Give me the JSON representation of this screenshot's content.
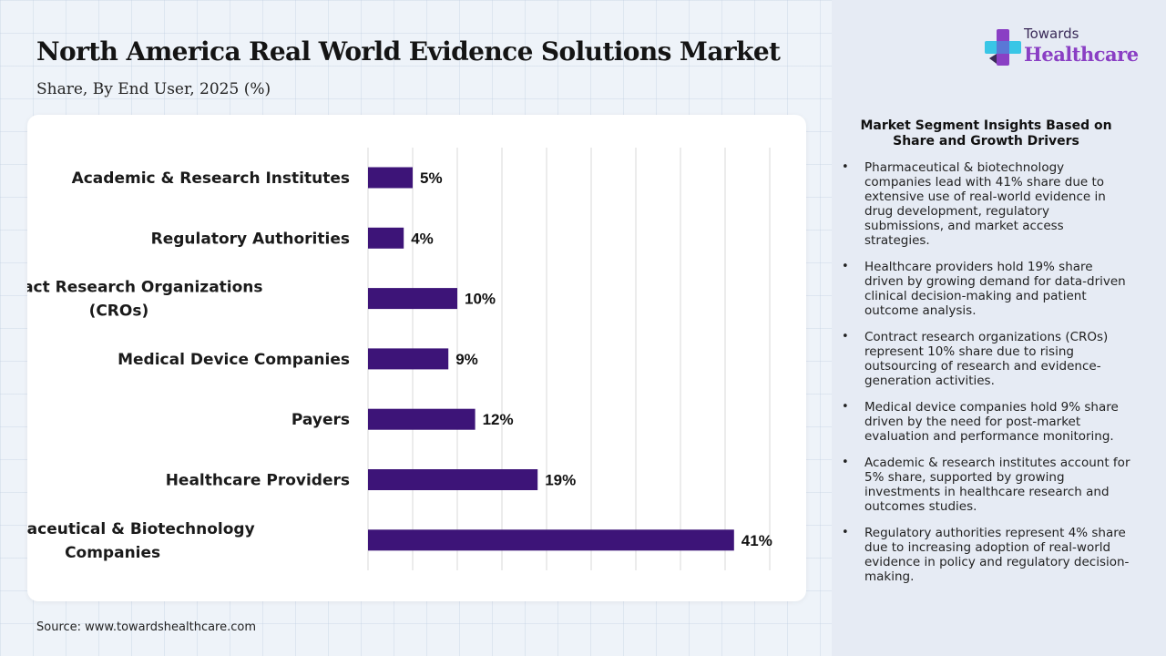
{
  "header": {
    "title": "North America Real World Evidence Solutions Market",
    "subtitle": "Share, By End User, 2025 (%)"
  },
  "brand": {
    "line1": "Towards",
    "line2": "Healthcare",
    "icon": "medical-cross-logo-icon",
    "colors": {
      "purple": "#8a3fc4",
      "cyan": "#39c6e6",
      "dark": "#3a2a58"
    }
  },
  "chart_data": {
    "type": "bar",
    "orientation": "horizontal",
    "title": "North America Real World Evidence Solutions Market",
    "subtitle": "Share, By End User, 2025 (%)",
    "categories": [
      [
        "Academic & Research Institutes"
      ],
      [
        "Regulatory Authorities"
      ],
      [
        "Contract Research Organizations",
        "(CROs)"
      ],
      [
        "Medical Device Companies"
      ],
      [
        "Payers"
      ],
      [
        "Healthcare Providers"
      ],
      [
        "Pharmaceutical & Biotechnology",
        "Companies"
      ]
    ],
    "values": [
      5,
      4,
      10,
      9,
      12,
      19,
      41
    ],
    "value_labels": [
      "5%",
      "4%",
      "10%",
      "9%",
      "12%",
      "19%",
      "41%"
    ],
    "unit": "%",
    "xlim": [
      0,
      45
    ],
    "gridlines": true,
    "bar_color": "#3d1478",
    "xlabel": "",
    "ylabel": ""
  },
  "insights": {
    "title": "Market Segment Insights Based on Share and Growth Drivers",
    "items": [
      "Pharmaceutical & biotechnology companies lead with 41% share due to extensive use of real-world evidence in drug development, regulatory submissions, and market access strategies.",
      "Healthcare providers hold 19% share driven by growing demand for data-driven clinical decision-making and patient outcome analysis.",
      "Contract research organizations (CROs) represent 10% share due to rising outsourcing of research and evidence-generation activities.",
      "Medical device companies hold 9% share driven by the need for post-market evaluation and performance monitoring.",
      "Academic & research institutes account for 5% share, supported by growing investments in healthcare research and outcomes studies.",
      "Regulatory authorities represent 4% share due to increasing adoption of real-world evidence in policy and regulatory decision-making."
    ]
  },
  "footer": {
    "source": "Source: www.towardshealthcare.com"
  }
}
